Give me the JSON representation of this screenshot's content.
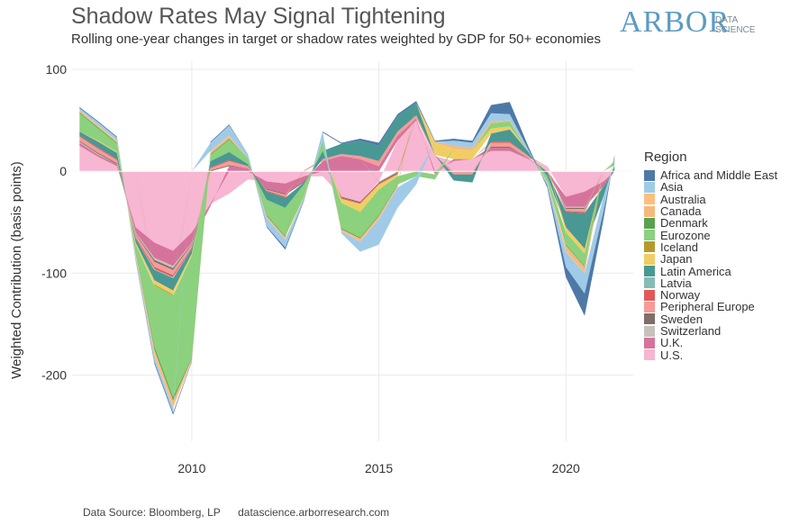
{
  "header": {
    "title": "Shadow Rates May Signal Tightening",
    "subtitle": "Rolling one-year changes in target or shadow rates weighted by GDP for 50+ economies"
  },
  "logo": {
    "main": "ARBOR",
    "sub1": "DATA",
    "sub2": "SCIENCE",
    "color": "#5b9bc2"
  },
  "footer": {
    "source": "Data Source: Bloomberg, LP",
    "url": "datascience.arborresearch.com"
  },
  "chart_data": {
    "type": "area",
    "stacked": true,
    "ylabel": "Weighted Contribution (basis points)",
    "xlabel": "",
    "ylim": [
      -265,
      108
    ],
    "xlim": [
      2006.8,
      2021.8
    ],
    "yticks": [
      100,
      0,
      -100,
      -200
    ],
    "ytick_labels": [
      "100",
      "0",
      "-100",
      "-200"
    ],
    "xticks": [
      2010,
      2015,
      2020
    ],
    "xtick_labels": [
      "2010",
      "2015",
      "2020"
    ],
    "grid": true,
    "legend_title": "Region",
    "legend_position": "right",
    "x": [
      2007.0,
      2007.5,
      2008.0,
      2008.5,
      2009.0,
      2009.5,
      2010.0,
      2010.5,
      2011.0,
      2011.5,
      2012.0,
      2012.5,
      2013.0,
      2013.5,
      2014.0,
      2014.5,
      2015.0,
      2015.5,
      2016.0,
      2016.5,
      2017.0,
      2017.5,
      2018.0,
      2018.5,
      2019.0,
      2019.5,
      2020.0,
      2020.5,
      2021.0,
      2021.3
    ],
    "series": [
      {
        "name": "U.S.",
        "color": "#f7b6d2",
        "values": [
          25,
          14,
          5,
          -55,
          -70,
          -78,
          -60,
          -32,
          -22,
          -8,
          -10,
          -12,
          -5,
          -5,
          -25,
          -30,
          -10,
          30,
          50,
          15,
          10,
          12,
          20,
          20,
          12,
          5,
          -25,
          -20,
          -10,
          0
        ]
      },
      {
        "name": "U.K.",
        "color": "#d6739c",
        "values": [
          3,
          2,
          2,
          -5,
          -15,
          -15,
          -10,
          -2,
          5,
          3,
          -7,
          -10,
          -5,
          10,
          15,
          12,
          5,
          5,
          2,
          -3,
          2,
          0,
          3,
          3,
          1,
          -1,
          -10,
          -15,
          -5,
          0
        ]
      },
      {
        "name": "Switzerland",
        "color": "#c7c1bd",
        "values": [
          1,
          1,
          0,
          -1,
          -2,
          -2,
          -1,
          0,
          0,
          0,
          0,
          0,
          0,
          0,
          0,
          0,
          -1,
          -1,
          0,
          0,
          0,
          0,
          0,
          0,
          0,
          0,
          -1,
          -1,
          0,
          0
        ]
      },
      {
        "name": "Sweden",
        "color": "#7f6f68",
        "values": [
          1,
          1,
          1,
          -1,
          -2,
          -2,
          -1,
          1,
          1,
          0,
          -1,
          -1,
          -1,
          0,
          -1,
          -1,
          -1,
          -1,
          0,
          0,
          0,
          0,
          1,
          1,
          0,
          0,
          -1,
          -1,
          0,
          0
        ]
      },
      {
        "name": "Peripheral Europe",
        "color": "#f89b98",
        "values": [
          4,
          4,
          3,
          -3,
          -5,
          -5,
          -3,
          2,
          4,
          2,
          -1,
          -2,
          1,
          2,
          2,
          3,
          5,
          4,
          3,
          1,
          -3,
          -3,
          4,
          4,
          2,
          0,
          -2,
          -3,
          0,
          1
        ]
      },
      {
        "name": "Norway",
        "color": "#e45757",
        "values": [
          1,
          1,
          1,
          -1,
          -2,
          -2,
          -1,
          1,
          1,
          0,
          -1,
          -1,
          0,
          0,
          -1,
          -1,
          -1,
          -1,
          0,
          0,
          0,
          0,
          1,
          1,
          0,
          0,
          -1,
          -1,
          0,
          0
        ]
      },
      {
        "name": "Latvia",
        "color": "#86bcb6",
        "values": [
          0,
          0,
          0,
          0,
          -1,
          -1,
          0,
          0,
          0,
          0,
          0,
          0,
          0,
          0,
          0,
          0,
          0,
          0,
          0,
          0,
          0,
          0,
          0,
          0,
          0,
          0,
          0,
          0,
          0,
          0
        ]
      },
      {
        "name": "Latin America",
        "color": "#499894",
        "values": [
          4,
          6,
          6,
          -4,
          -10,
          -12,
          -5,
          6,
          8,
          2,
          -8,
          -10,
          -2,
          8,
          10,
          15,
          15,
          15,
          12,
          0,
          -6,
          -8,
          8,
          12,
          4,
          -4,
          -15,
          -35,
          -10,
          5
        ]
      },
      {
        "name": "Japan",
        "color": "#f1ce63",
        "values": [
          0,
          1,
          1,
          -2,
          -4,
          -4,
          -2,
          0,
          0,
          0,
          0,
          0,
          0,
          0,
          -4,
          -8,
          -5,
          -2,
          0,
          12,
          10,
          8,
          5,
          3,
          0,
          0,
          -5,
          -5,
          0,
          0
        ]
      },
      {
        "name": "Iceland",
        "color": "#b6992d",
        "values": [
          0,
          0,
          0,
          0,
          -1,
          -1,
          0,
          0,
          0,
          0,
          0,
          0,
          0,
          0,
          0,
          0,
          0,
          0,
          0,
          0,
          0,
          0,
          0,
          0,
          0,
          0,
          0,
          0,
          0,
          0
        ]
      },
      {
        "name": "Eurozone",
        "color": "#8cd17d",
        "values": [
          18,
          12,
          8,
          -8,
          -60,
          -100,
          -100,
          6,
          12,
          6,
          -15,
          -28,
          -12,
          10,
          -25,
          -25,
          -25,
          -8,
          -5,
          -5,
          0,
          0,
          5,
          5,
          0,
          -5,
          -12,
          -12,
          0,
          3
        ]
      },
      {
        "name": "Denmark",
        "color": "#59a14f",
        "values": [
          1,
          1,
          1,
          -1,
          -3,
          -3,
          -1,
          1,
          1,
          0,
          -1,
          -1,
          0,
          0,
          -1,
          -1,
          -1,
          -1,
          0,
          0,
          0,
          0,
          0,
          0,
          0,
          0,
          -1,
          -1,
          0,
          0
        ]
      },
      {
        "name": "Canada",
        "color": "#f4b97b",
        "values": [
          1,
          1,
          1,
          -2,
          -4,
          -4,
          -1,
          2,
          2,
          0,
          -1,
          -1,
          0,
          0,
          -1,
          -2,
          -2,
          -1,
          0,
          1,
          3,
          3,
          2,
          1,
          0,
          -1,
          -5,
          -5,
          0,
          1
        ]
      },
      {
        "name": "Australia",
        "color": "#ffbe7d",
        "values": [
          1,
          1,
          1,
          -1,
          -3,
          -3,
          -1,
          1,
          1,
          0,
          -1,
          -1,
          -1,
          0,
          -1,
          -1,
          -1,
          -1,
          0,
          0,
          0,
          0,
          0,
          0,
          0,
          0,
          -1,
          -1,
          0,
          0
        ]
      },
      {
        "name": "Asia",
        "color": "#a0cbe8",
        "values": [
          2,
          3,
          3,
          -3,
          -5,
          -5,
          0,
          8,
          10,
          4,
          -8,
          -8,
          -2,
          8,
          -2,
          -10,
          -25,
          -20,
          -8,
          0,
          5,
          5,
          8,
          6,
          2,
          -3,
          -15,
          -20,
          -15,
          3
        ]
      },
      {
        "name": "Africa and Middle East",
        "color": "#4e79a7",
        "values": [
          1,
          1,
          1,
          -1,
          -2,
          -2,
          -1,
          1,
          1,
          0,
          -1,
          -2,
          -1,
          1,
          1,
          2,
          3,
          2,
          2,
          1,
          2,
          2,
          8,
          12,
          3,
          -2,
          -10,
          -22,
          -8,
          3
        ]
      }
    ]
  }
}
